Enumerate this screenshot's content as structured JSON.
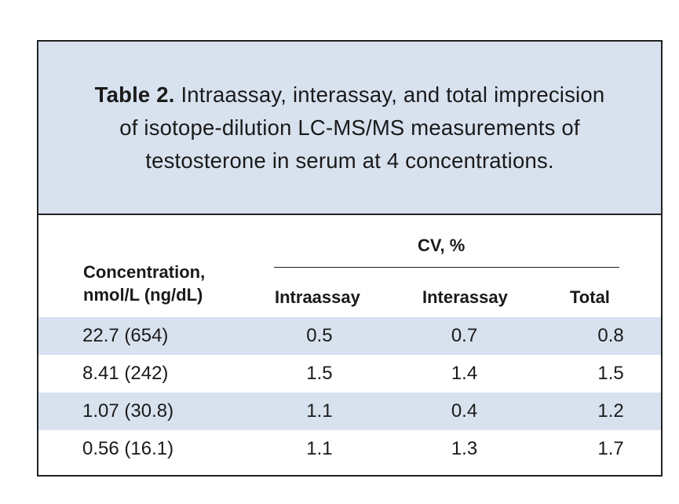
{
  "caption": {
    "label": "Table 2.",
    "text": "Intraassay, interassay, and total imprecision of isotope-dilution LC-MS/MS measurements of testosterone in serum at 4 concentrations."
  },
  "headers": {
    "concentration": "Concentration, nmol/L (ng/dL)",
    "cv_group": "CV, %",
    "intraassay": "Intraassay",
    "interassay": "Interassay",
    "total": "Total"
  },
  "rows": [
    {
      "concentration": "22.7 (654)",
      "intraassay": "0.5",
      "interassay": "0.7",
      "total": "0.8"
    },
    {
      "concentration": "8.41 (242)",
      "intraassay": "1.5",
      "interassay": "1.4",
      "total": "1.5"
    },
    {
      "concentration": "1.07 (30.8)",
      "intraassay": "1.1",
      "interassay": "0.4",
      "total": "1.2"
    },
    {
      "concentration": "0.56 (16.1)",
      "intraassay": "1.1",
      "interassay": "1.3",
      "total": "1.7"
    }
  ],
  "colors": {
    "shade": "#d8e2ef",
    "border": "#222222"
  }
}
